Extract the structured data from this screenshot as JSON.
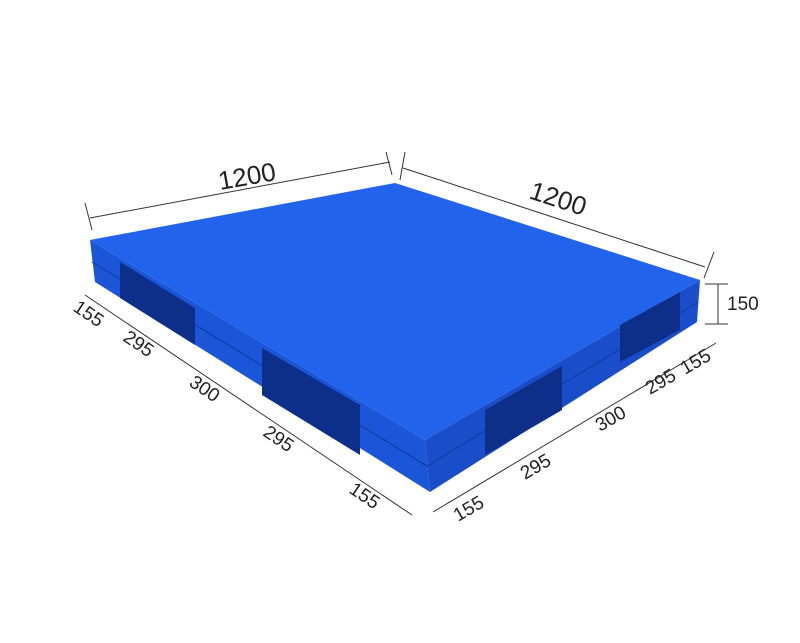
{
  "colors": {
    "pallet_top": "#1f5fe6",
    "pallet_side": "#1a4fcf",
    "pallet_dark": "#123a9a",
    "dimension_line": "#333333"
  },
  "dimensions": {
    "top_left_length": "1200",
    "top_right_length": "1200",
    "height": "150",
    "left_segments": [
      "155",
      "295",
      "300",
      "295",
      "155"
    ],
    "right_segments": [
      "155",
      "295",
      "300",
      "295",
      "155"
    ]
  }
}
